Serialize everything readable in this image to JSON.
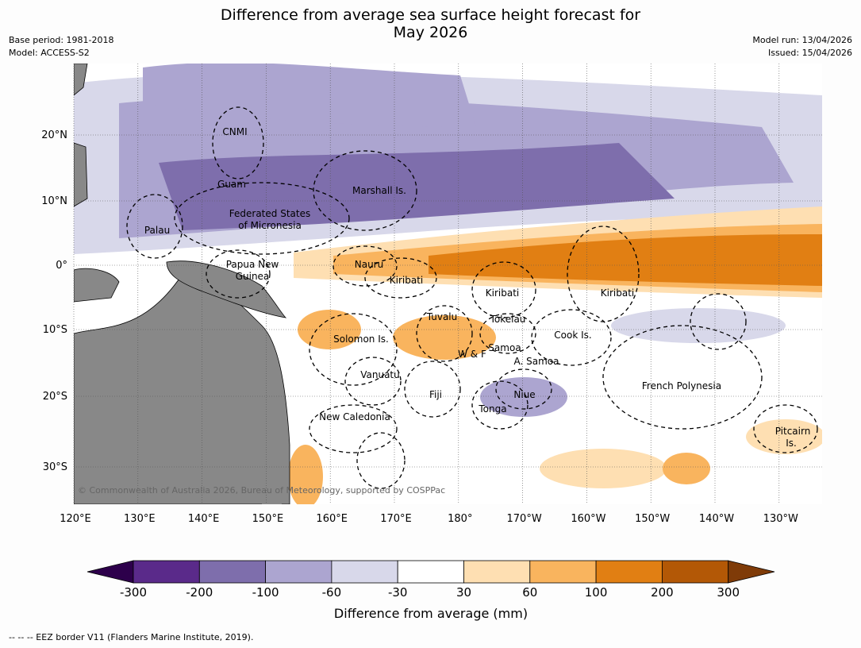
{
  "title_line1": "Difference from average sea surface height forecast for",
  "title_line2": "May 2026",
  "meta_left": {
    "base_period": "Base period: 1981-2018",
    "model": "Model: ACCESS-S2"
  },
  "meta_right": {
    "model_run": "Model run: 13/04/2026",
    "issued": "Issued: 15/04/2026"
  },
  "map": {
    "lat_labels": [
      "20°N",
      "10°N",
      "0°",
      "10°S",
      "20°S",
      "30°S"
    ],
    "lon_labels": [
      "120°E",
      "130°E",
      "140°E",
      "150°E",
      "160°E",
      "170°E",
      "180°",
      "170°W",
      "160°W",
      "150°W",
      "140°W",
      "130°W"
    ],
    "regions": [
      "CNMI",
      "Guam",
      "Marshall Is.",
      "Federated States",
      "of Micronesia",
      "Palau",
      "Nauru",
      "Papua New",
      "Guinea",
      "Kiribati",
      "Kiribati",
      "Kiribati",
      "Tuvalu",
      "Tokelau",
      "Cook Is.",
      "Solomon Is.",
      "W & F",
      "Samoa",
      "A. Samoa",
      "Vanuatu",
      "Fiji",
      "Niue",
      "Tonga",
      "French Polynesia",
      "New Caledonia",
      "Pitcairn",
      "Is."
    ],
    "copyright": "© Commonwealth of Australia 2026, Bureau of Meteorology, supported by COSPPac",
    "land_color": "#888888"
  },
  "colorbar": {
    "ticks": [
      "-300",
      "-200",
      "-100",
      "-60",
      "-30",
      "30",
      "60",
      "100",
      "200",
      "300"
    ],
    "colors": [
      "#5a2a8a",
      "#7e6eac",
      "#aca5d0",
      "#d8d8ea",
      "#ffffff",
      "#fedfb2",
      "#f9b45e",
      "#e17f13",
      "#b35806"
    ],
    "extend_low": "#2d004b",
    "extend_high": "#7f3b08",
    "label": "Difference from average (mm)"
  },
  "footer": "--  --  -- EEZ border V11 (Flanders Marine Institute, 2019)."
}
